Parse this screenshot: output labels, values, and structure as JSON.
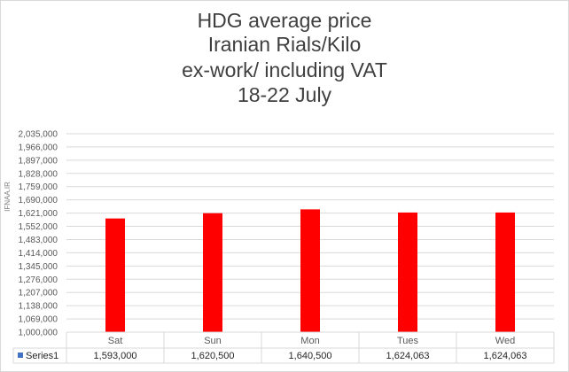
{
  "chart_data": {
    "type": "bar",
    "title_lines": [
      "HDG average price",
      "Iranian Rials/Kilo",
      "ex-work/ including VAT",
      "18-22 July"
    ],
    "categories": [
      "Sat",
      "Sun",
      "Mon",
      "Tues",
      "Wed"
    ],
    "series": [
      {
        "name": "Series1",
        "values": [
          1593000,
          1620500,
          1640500,
          1624063,
          1624063
        ],
        "labels": [
          "1,593,000",
          "1,620,500",
          "1,640,500",
          "1,624,063",
          "1,624,063"
        ]
      }
    ],
    "ylim": [
      1000000,
      2035000
    ],
    "yticks": [
      1000000,
      1069000,
      1138000,
      1207000,
      1276000,
      1345000,
      1414000,
      1483000,
      1552000,
      1621000,
      1690000,
      1759000,
      1828000,
      1897000,
      1966000,
      2035000
    ],
    "grid": true,
    "legend": "data-table",
    "watermark": "IFNAA.IR",
    "colors": {
      "bar": "#ff0000",
      "legend_key": "#4472c4",
      "grid": "#d9d9d9",
      "text": "#595959"
    }
  }
}
